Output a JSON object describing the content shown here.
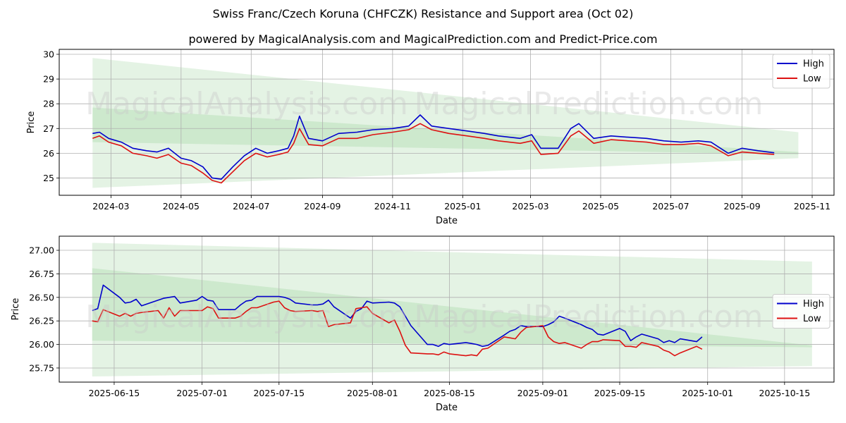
{
  "title": "Swiss Franc/Czech Koruna (CHFCZK) Resistance and Support area (Oct 02)",
  "subtitle": "powered by MagicalAnalysis.com and MagicalPrediction.com and Predict-Price.com",
  "watermarks": [
    "MagicalAnalysis.com",
    "MagicalPrediction.com"
  ],
  "colors": {
    "high": "#0000cc",
    "low": "#dd1111",
    "band": "#5cb85c"
  },
  "chart_data": [
    {
      "type": "line",
      "xlabel": "Date",
      "ylabel": "Price",
      "xlim": [
        "2024-01-16",
        "2025-11-20"
      ],
      "ylim": [
        24.3,
        30.2
      ],
      "grid": true,
      "legend": "top-right",
      "x_ticks": [
        "2024-03-01",
        "2024-05-01",
        "2024-07-01",
        "2024-09-01",
        "2024-11-01",
        "2025-01-01",
        "2025-03-01",
        "2025-05-01",
        "2025-07-01",
        "2025-09-01",
        "2025-11-01"
      ],
      "x_tick_labels": [
        "2024-03",
        "2024-05",
        "2024-07",
        "2024-09",
        "2024-11",
        "2025-01",
        "2025-03",
        "2025-05",
        "2025-07",
        "2025-09",
        "2025-11"
      ],
      "y_ticks": [
        25,
        26,
        27,
        28,
        29,
        30
      ],
      "y_tick_labels": [
        "25",
        "26",
        "27",
        "28",
        "29",
        "30"
      ],
      "bands": [
        {
          "start": "2024-02-14",
          "end": "2025-10-20",
          "upper_start": 29.85,
          "upper_end": 26.85,
          "lower_start": 24.6,
          "lower_end": 25.8
        },
        {
          "start": "2024-02-14",
          "end": "2025-10-20",
          "upper_start": 27.85,
          "upper_end": 26.05,
          "lower_start": 26.45,
          "lower_end": 25.95
        }
      ],
      "series": [
        {
          "name": "High",
          "x": [
            "2024-02-14",
            "2024-02-20",
            "2024-02-28",
            "2024-03-10",
            "2024-03-20",
            "2024-04-01",
            "2024-04-10",
            "2024-04-20",
            "2024-05-01",
            "2024-05-10",
            "2024-05-20",
            "2024-05-28",
            "2024-06-05",
            "2024-06-15",
            "2024-06-25",
            "2024-07-05",
            "2024-07-15",
            "2024-07-25",
            "2024-08-02",
            "2024-08-07",
            "2024-08-12",
            "2024-08-20",
            "2024-09-01",
            "2024-09-15",
            "2024-10-01",
            "2024-10-15",
            "2024-11-01",
            "2024-11-15",
            "2024-11-25",
            "2024-12-05",
            "2024-12-20",
            "2025-01-05",
            "2025-01-20",
            "2025-02-01",
            "2025-02-20",
            "2025-03-02",
            "2025-03-10",
            "2025-03-25",
            "2025-04-05",
            "2025-04-12",
            "2025-04-25",
            "2025-05-10",
            "2025-05-25",
            "2025-06-10",
            "2025-06-25",
            "2025-07-10",
            "2025-07-25",
            "2025-08-05",
            "2025-08-20",
            "2025-09-01",
            "2025-09-15",
            "2025-09-29"
          ],
          "y": [
            26.8,
            26.85,
            26.6,
            26.45,
            26.2,
            26.1,
            26.05,
            26.2,
            25.8,
            25.7,
            25.45,
            25.0,
            24.95,
            25.45,
            25.9,
            26.2,
            26.0,
            26.1,
            26.2,
            26.7,
            27.5,
            26.6,
            26.5,
            26.8,
            26.85,
            26.95,
            27.0,
            27.1,
            27.55,
            27.1,
            27.0,
            26.9,
            26.8,
            26.7,
            26.6,
            26.75,
            26.2,
            26.2,
            27.0,
            27.2,
            26.6,
            26.7,
            26.65,
            26.6,
            26.5,
            26.45,
            26.5,
            26.45,
            26.0,
            26.2,
            26.1,
            26.02
          ]
        },
        {
          "name": "Low",
          "x": [
            "2024-02-14",
            "2024-02-20",
            "2024-02-28",
            "2024-03-10",
            "2024-03-20",
            "2024-04-01",
            "2024-04-10",
            "2024-04-20",
            "2024-05-01",
            "2024-05-10",
            "2024-05-20",
            "2024-05-28",
            "2024-06-05",
            "2024-06-15",
            "2024-06-25",
            "2024-07-05",
            "2024-07-15",
            "2024-07-25",
            "2024-08-02",
            "2024-08-07",
            "2024-08-12",
            "2024-08-20",
            "2024-09-01",
            "2024-09-15",
            "2024-10-01",
            "2024-10-15",
            "2024-11-01",
            "2024-11-15",
            "2024-11-25",
            "2024-12-05",
            "2024-12-20",
            "2025-01-05",
            "2025-01-20",
            "2025-02-01",
            "2025-02-20",
            "2025-03-02",
            "2025-03-10",
            "2025-03-25",
            "2025-04-05",
            "2025-04-12",
            "2025-04-25",
            "2025-05-10",
            "2025-05-25",
            "2025-06-10",
            "2025-06-25",
            "2025-07-10",
            "2025-07-25",
            "2025-08-05",
            "2025-08-20",
            "2025-09-01",
            "2025-09-15",
            "2025-09-29"
          ],
          "y": [
            26.6,
            26.7,
            26.45,
            26.3,
            26.0,
            25.9,
            25.8,
            25.95,
            25.6,
            25.5,
            25.2,
            24.9,
            24.8,
            25.25,
            25.7,
            26.0,
            25.85,
            25.95,
            26.05,
            26.4,
            27.0,
            26.35,
            26.3,
            26.6,
            26.6,
            26.75,
            26.85,
            26.95,
            27.2,
            26.95,
            26.8,
            26.7,
            26.6,
            26.5,
            26.4,
            26.5,
            25.95,
            26.0,
            26.7,
            26.9,
            26.4,
            26.55,
            26.5,
            26.45,
            26.35,
            26.35,
            26.4,
            26.3,
            25.9,
            26.05,
            26.0,
            25.95
          ]
        }
      ]
    },
    {
      "type": "line",
      "xlabel": "Date",
      "ylabel": "Price",
      "xlim": [
        "2025-06-05",
        "2025-10-24"
      ],
      "ylim": [
        25.6,
        27.15
      ],
      "grid": true,
      "legend": "center-right",
      "x_ticks": [
        "2025-06-15",
        "2025-07-01",
        "2025-07-15",
        "2025-08-01",
        "2025-08-15",
        "2025-09-01",
        "2025-09-15",
        "2025-10-01",
        "2025-10-15"
      ],
      "x_tick_labels": [
        "2025-06-15",
        "2025-07-01",
        "2025-07-15",
        "2025-08-01",
        "2025-08-15",
        "2025-09-01",
        "2025-09-15",
        "2025-10-01",
        "2025-10-15"
      ],
      "y_ticks": [
        25.75,
        26.0,
        26.25,
        26.5,
        26.75,
        27.0
      ],
      "y_tick_labels": [
        "25.75",
        "26.00",
        "26.25",
        "26.50",
        "26.75",
        "27.00"
      ],
      "bands": [
        {
          "start": "2025-06-11",
          "end": "2025-10-20",
          "upper_start": 27.08,
          "upper_end": 26.88,
          "lower_start": 25.66,
          "lower_end": 25.77
        },
        {
          "start": "2025-06-11",
          "end": "2025-10-20",
          "upper_start": 26.81,
          "upper_end": 25.99,
          "lower_start": 26.04,
          "lower_end": 25.97
        }
      ],
      "series": [
        {
          "name": "High",
          "x": [
            "2025-06-11",
            "2025-06-12",
            "2025-06-13",
            "2025-06-16",
            "2025-06-17",
            "2025-06-18",
            "2025-06-19",
            "2025-06-20",
            "2025-06-23",
            "2025-06-24",
            "2025-06-25",
            "2025-06-26",
            "2025-06-27",
            "2025-06-30",
            "2025-07-01",
            "2025-07-02",
            "2025-07-03",
            "2025-07-04",
            "2025-07-07",
            "2025-07-08",
            "2025-07-09",
            "2025-07-10",
            "2025-07-11",
            "2025-07-14",
            "2025-07-15",
            "2025-07-16",
            "2025-07-17",
            "2025-07-18",
            "2025-07-21",
            "2025-07-22",
            "2025-07-23",
            "2025-07-24",
            "2025-07-25",
            "2025-07-28",
            "2025-07-29",
            "2025-07-30",
            "2025-07-31",
            "2025-08-01",
            "2025-08-04",
            "2025-08-05",
            "2025-08-06",
            "2025-08-07",
            "2025-08-08",
            "2025-08-11",
            "2025-08-12",
            "2025-08-13",
            "2025-08-14",
            "2025-08-15",
            "2025-08-18",
            "2025-08-19",
            "2025-08-20",
            "2025-08-21",
            "2025-08-22",
            "2025-08-25",
            "2025-08-26",
            "2025-08-27",
            "2025-08-28",
            "2025-08-29",
            "2025-09-01",
            "2025-09-02",
            "2025-09-03",
            "2025-09-04",
            "2025-09-05",
            "2025-09-08",
            "2025-09-09",
            "2025-09-10",
            "2025-09-11",
            "2025-09-12",
            "2025-09-15",
            "2025-09-16",
            "2025-09-17",
            "2025-09-18",
            "2025-09-19",
            "2025-09-22",
            "2025-09-23",
            "2025-09-24",
            "2025-09-25",
            "2025-09-26",
            "2025-09-29",
            "2025-09-30"
          ],
          "y": [
            26.36,
            26.38,
            26.63,
            26.5,
            26.44,
            26.45,
            26.48,
            26.41,
            26.47,
            26.49,
            26.5,
            26.51,
            26.44,
            26.47,
            26.51,
            26.47,
            26.46,
            26.37,
            26.37,
            26.42,
            26.46,
            26.47,
            26.51,
            26.51,
            26.51,
            26.5,
            26.48,
            26.44,
            26.42,
            26.42,
            26.43,
            26.47,
            26.4,
            26.28,
            26.35,
            26.38,
            26.46,
            26.44,
            26.45,
            26.44,
            26.4,
            26.3,
            26.2,
            26.0,
            26.0,
            25.98,
            26.01,
            26.0,
            26.02,
            26.01,
            26.0,
            25.98,
            25.99,
            26.1,
            26.14,
            26.16,
            26.2,
            26.19,
            26.19,
            26.21,
            26.24,
            26.3,
            26.28,
            26.21,
            26.18,
            26.16,
            26.11,
            26.1,
            26.17,
            26.14,
            26.04,
            26.08,
            26.11,
            26.06,
            26.02,
            26.04,
            26.02,
            26.06,
            26.03,
            26.08
          ]
        },
        {
          "name": "Low",
          "x": [
            "2025-06-11",
            "2025-06-12",
            "2025-06-13",
            "2025-06-16",
            "2025-06-17",
            "2025-06-18",
            "2025-06-19",
            "2025-06-20",
            "2025-06-23",
            "2025-06-24",
            "2025-06-25",
            "2025-06-26",
            "2025-06-27",
            "2025-06-30",
            "2025-07-01",
            "2025-07-02",
            "2025-07-03",
            "2025-07-04",
            "2025-07-07",
            "2025-07-08",
            "2025-07-09",
            "2025-07-10",
            "2025-07-11",
            "2025-07-14",
            "2025-07-15",
            "2025-07-16",
            "2025-07-17",
            "2025-07-18",
            "2025-07-21",
            "2025-07-22",
            "2025-07-23",
            "2025-07-24",
            "2025-07-25",
            "2025-07-28",
            "2025-07-29",
            "2025-07-30",
            "2025-07-31",
            "2025-08-01",
            "2025-08-04",
            "2025-08-05",
            "2025-08-06",
            "2025-08-07",
            "2025-08-08",
            "2025-08-11",
            "2025-08-12",
            "2025-08-13",
            "2025-08-14",
            "2025-08-15",
            "2025-08-18",
            "2025-08-19",
            "2025-08-20",
            "2025-08-21",
            "2025-08-22",
            "2025-08-25",
            "2025-08-26",
            "2025-08-27",
            "2025-08-28",
            "2025-08-29",
            "2025-09-01",
            "2025-09-02",
            "2025-09-03",
            "2025-09-04",
            "2025-09-05",
            "2025-09-08",
            "2025-09-09",
            "2025-09-10",
            "2025-09-11",
            "2025-09-12",
            "2025-09-15",
            "2025-09-16",
            "2025-09-17",
            "2025-09-18",
            "2025-09-19",
            "2025-09-22",
            "2025-09-23",
            "2025-09-24",
            "2025-09-25",
            "2025-09-26",
            "2025-09-29",
            "2025-09-30"
          ],
          "y": [
            26.25,
            26.24,
            26.37,
            26.3,
            26.33,
            26.3,
            26.33,
            26.34,
            26.36,
            26.28,
            26.39,
            26.3,
            26.36,
            26.36,
            26.36,
            26.4,
            26.38,
            26.28,
            26.28,
            26.3,
            26.35,
            26.39,
            26.39,
            26.45,
            26.46,
            26.39,
            26.36,
            26.35,
            26.36,
            26.35,
            26.36,
            26.19,
            26.21,
            26.23,
            26.38,
            26.39,
            26.4,
            26.33,
            26.23,
            26.26,
            26.14,
            25.99,
            25.91,
            25.9,
            25.9,
            25.89,
            25.92,
            25.9,
            25.88,
            25.89,
            25.88,
            25.95,
            25.96,
            26.08,
            26.07,
            26.06,
            26.13,
            26.18,
            26.2,
            26.08,
            26.03,
            26.01,
            26.02,
            25.96,
            26.0,
            26.03,
            26.03,
            26.05,
            26.04,
            25.98,
            25.98,
            25.97,
            26.02,
            25.98,
            25.94,
            25.92,
            25.88,
            25.91,
            25.98,
            25.95
          ]
        }
      ]
    }
  ]
}
